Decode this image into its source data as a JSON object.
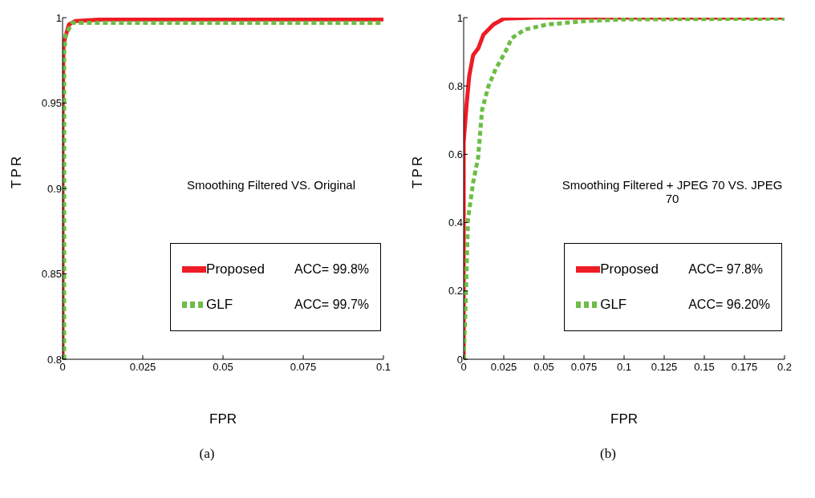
{
  "chart_data": [
    {
      "type": "line",
      "xlabel": "FPR",
      "ylabel": "TPR",
      "xlim": [
        0,
        0.1
      ],
      "xticks": [
        0,
        0.025,
        0.05,
        0.075,
        0.1
      ],
      "ylim": [
        0.8,
        1
      ],
      "yticks": [
        0.8,
        0.85,
        0.9,
        0.95,
        1
      ],
      "grid": false,
      "legend": "bottom right",
      "annotations": [
        "Smoothing Filtered VS. Original",
        "ACC= 99.8%",
        "ACC= 99.7%",
        "(a)"
      ],
      "series": [
        {
          "name": "Proposed",
          "color": "#ee1c25",
          "line_style": "solid",
          "x": [
            0,
            0,
            0.0003,
            0.002,
            0.004,
            0.013,
            0.1
          ],
          "values": [
            0.8,
            0.94,
            0.985,
            0.996,
            0.998,
            0.999,
            0.999
          ]
        },
        {
          "name": "GLF",
          "color": "#6cbd45",
          "line_style": "dashed",
          "x": [
            0.0005,
            0.0005,
            0.001,
            0.003,
            0.1
          ],
          "values": [
            0.8,
            0.98,
            0.99,
            0.997,
            0.997
          ]
        }
      ]
    },
    {
      "type": "line",
      "xlabel": "FPR",
      "ylabel": "TPR",
      "xlim": [
        0,
        0.2
      ],
      "xticks": [
        0,
        0.025,
        0.05,
        0.075,
        0.1,
        0.125,
        0.15,
        0.175,
        0.2
      ],
      "ylim": [
        0,
        1
      ],
      "yticks": [
        0,
        0.2,
        0.4,
        0.6,
        0.8,
        1
      ],
      "grid": false,
      "legend": "bottom right",
      "annotations": [
        "Smoothing Filtered + JPEG 70 VS. JPEG 70",
        "ACC= 97.8%",
        "ACC= 96.20%",
        "(b)"
      ],
      "series": [
        {
          "name": "Proposed",
          "color": "#ee1c25",
          "line_style": "solid",
          "x": [
            0,
            0,
            0.0019,
            0.0035,
            0.0059,
            0.0091,
            0.0123,
            0.0186,
            0.025,
            0.044,
            0.2
          ],
          "values": [
            0,
            0.636,
            0.75,
            0.83,
            0.89,
            0.91,
            0.95,
            0.98,
            0.997,
            1,
            1
          ]
        },
        {
          "name": "GLF",
          "color": "#6cbd45",
          "line_style": "dashed",
          "x": [
            0,
            0.001,
            0.0027,
            0.006,
            0.009,
            0.0115,
            0.0155,
            0.02,
            0.026,
            0.03,
            0.038,
            0.052,
            0.076,
            0.1,
            0.2
          ],
          "values": [
            0,
            0.13,
            0.41,
            0.52,
            0.59,
            0.73,
            0.8,
            0.85,
            0.9,
            0.94,
            0.965,
            0.98,
            0.99,
            0.995,
            0.997
          ]
        }
      ]
    }
  ]
}
